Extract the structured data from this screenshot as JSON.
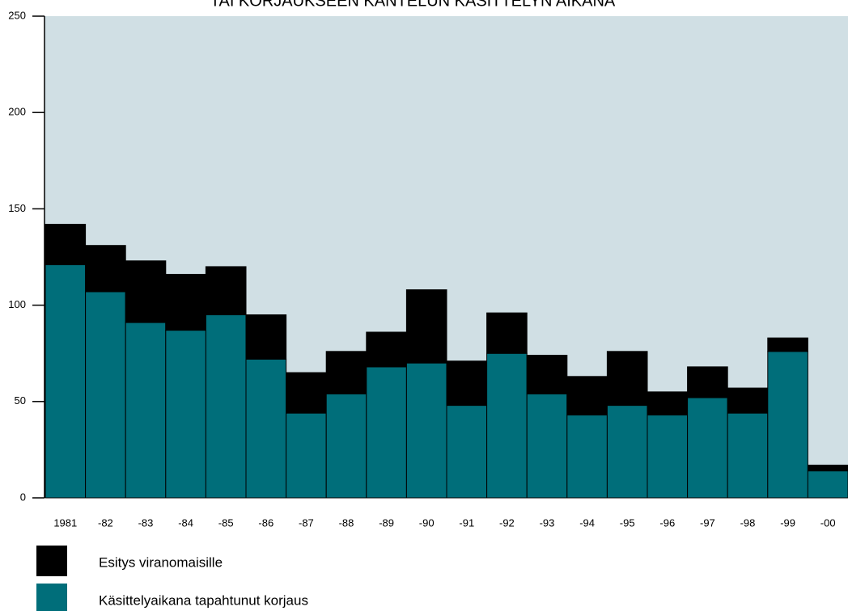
{
  "chart_data": {
    "type": "stacked_bar",
    "title": "TAI KORJAUKSEEN KANTELUN KÄSITTELYN AIKANA",
    "categories": [
      "1981",
      "-82",
      "-83",
      "-84",
      "-85",
      "-86",
      "-87",
      "-88",
      "-89",
      "-90",
      "-91",
      "-92",
      "-93",
      "-94",
      "-95",
      "-96",
      "-97",
      "-98",
      "-99",
      "-00"
    ],
    "series": [
      {
        "name": "Esitys viranomaisille",
        "color": "#000000",
        "values": [
          21,
          24,
          32,
          29,
          25,
          23,
          21,
          22,
          18,
          38,
          23,
          21,
          20,
          20,
          28,
          12,
          16,
          13,
          7,
          3
        ]
      },
      {
        "name": "Käsittelyaikana tapahtunut korjaus",
        "color": "#006e7a",
        "values": [
          121,
          107,
          91,
          87,
          95,
          72,
          44,
          54,
          68,
          70,
          48,
          75,
          54,
          43,
          48,
          43,
          52,
          44,
          76,
          14
        ]
      }
    ],
    "ylim": [
      0,
      250
    ],
    "yticks": [
      0,
      50,
      100,
      150,
      200,
      250
    ],
    "plot_background": "#d0dfe4"
  }
}
